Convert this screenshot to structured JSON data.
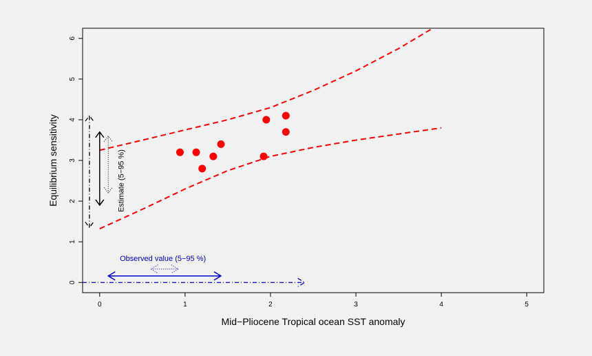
{
  "chart_data": {
    "type": "scatter",
    "xlabel": "Mid−Pliocene Tropical ocean SST anomaly",
    "ylabel": "Equilibrium sensitivity",
    "xlim": [
      -0.2,
      5.2
    ],
    "ylim": [
      -0.25,
      6.25
    ],
    "x_ticks": [
      0,
      1,
      2,
      3,
      4,
      5
    ],
    "y_ticks": [
      0,
      1,
      2,
      3,
      4,
      5,
      6
    ],
    "point_color": "#ff0000",
    "band_color": "#ff0000",
    "points": [
      {
        "x": 0.94,
        "y": 3.2
      },
      {
        "x": 1.13,
        "y": 3.2
      },
      {
        "x": 1.2,
        "y": 2.8
      },
      {
        "x": 1.33,
        "y": 3.1
      },
      {
        "x": 1.42,
        "y": 3.4
      },
      {
        "x": 1.92,
        "y": 3.1
      },
      {
        "x": 1.95,
        "y": 4.0
      },
      {
        "x": 2.18,
        "y": 4.1
      },
      {
        "x": 2.18,
        "y": 3.7
      }
    ],
    "upper_band": [
      {
        "x": 0.0,
        "y": 3.25
      },
      {
        "x": 0.5,
        "y": 3.5
      },
      {
        "x": 1.0,
        "y": 3.75
      },
      {
        "x": 1.5,
        "y": 4.0
      },
      {
        "x": 2.0,
        "y": 4.3
      },
      {
        "x": 2.5,
        "y": 4.72
      },
      {
        "x": 3.0,
        "y": 5.2
      },
      {
        "x": 3.5,
        "y": 5.75
      },
      {
        "x": 3.9,
        "y": 6.25
      }
    ],
    "lower_band": [
      {
        "x": 0.0,
        "y": 1.32
      },
      {
        "x": 0.5,
        "y": 1.8
      },
      {
        "x": 1.0,
        "y": 2.3
      },
      {
        "x": 1.5,
        "y": 2.75
      },
      {
        "x": 2.0,
        "y": 3.1
      },
      {
        "x": 2.5,
        "y": 3.32
      },
      {
        "x": 3.0,
        "y": 3.5
      },
      {
        "x": 3.5,
        "y": 3.65
      },
      {
        "x": 4.0,
        "y": 3.8
      }
    ],
    "annotations": {
      "estimate_label": "Estimate (5−95 %)",
      "estimate_color": "#000000",
      "estimate_range": [
        1.9,
        3.7
      ],
      "estimate_dotted_range": [
        2.2,
        3.6
      ],
      "estimate_dashdot_range": [
        1.35,
        4.1
      ],
      "observed_label": "Observed value (5−95 %)",
      "observed_color": "#0000cc",
      "observed_range": [
        0.1,
        1.42
      ],
      "observed_dotted_range": [
        0.6,
        0.92
      ],
      "observed_dashdot_range": [
        -0.2,
        2.4
      ]
    }
  }
}
